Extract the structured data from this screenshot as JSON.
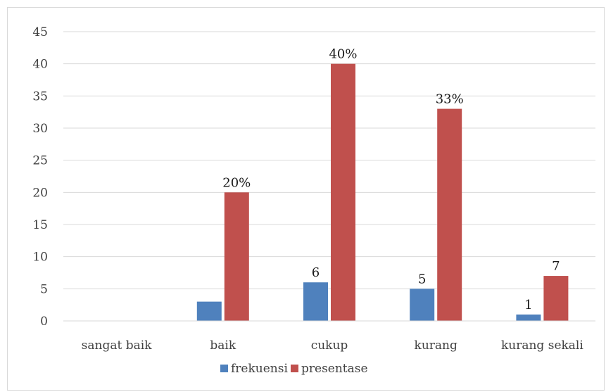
{
  "chart_data": {
    "type": "bar",
    "title": "",
    "xlabel": "",
    "ylabel": "",
    "categories": [
      "sangat baik",
      "baik",
      "cukup",
      "kurang",
      "kurang sekali"
    ],
    "series": [
      {
        "name": "frekuensi",
        "color": "#4f81bd",
        "values": [
          0,
          3,
          6,
          5,
          1
        ],
        "labels": [
          "",
          "",
          "6",
          "5",
          "1"
        ]
      },
      {
        "name": "presentase",
        "color": "#c0504d",
        "values": [
          0,
          20,
          40,
          33,
          7
        ],
        "labels": [
          "",
          "20%",
          "40%",
          "33%",
          "7"
        ]
      }
    ],
    "ylim": [
      0,
      45
    ],
    "yticks": [
      0,
      5,
      10,
      15,
      20,
      25,
      30,
      35,
      40,
      45
    ],
    "grid": true,
    "legend": "bottom"
  }
}
